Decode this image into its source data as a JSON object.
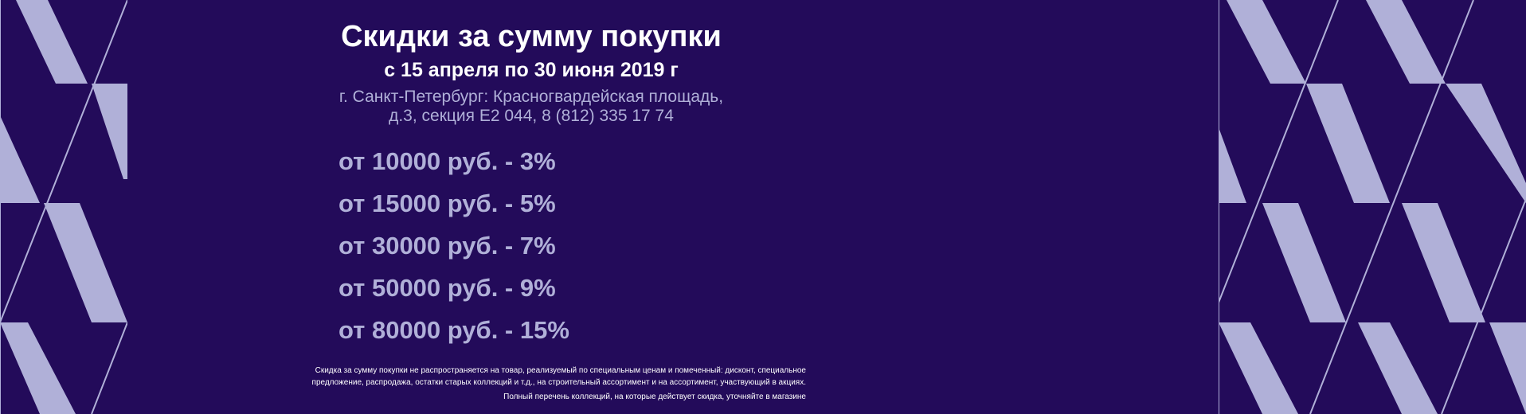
{
  "banner": {
    "title": "Скидки за сумму покупки",
    "dates": "с 15 апреля по 30 июня 2019 г",
    "address_line1": "г. Санкт-Петербург: Красногвардейская площадь,",
    "address_line2": "д.3, секция Е2 044, 8 (812) 335 17 74",
    "tiers": [
      {
        "label": "от 10000 руб. - 3%"
      },
      {
        "label": "от 15000 руб. - 5%"
      },
      {
        "label": "от 30000 руб. - 7%"
      },
      {
        "label": "от 50000 руб. - 9%"
      },
      {
        "label": "от 80000 руб. - 15%"
      }
    ],
    "disclaimer_line1": "Скидка за сумму покупки не распространяется на товар, реализуемый по специальным ценам и помеченный: дисконт, специальное",
    "disclaimer_line2": "предложение, распродажа, остатки старых коллекций и т.д., на строительный ассортимент и на ассортимент, участвующий в акциях.",
    "disclaimer_line3": "Полный перечень коллекций, на которые действует скидка, уточняйте в магазине"
  },
  "colors": {
    "background": "#230b5a",
    "pattern_stripe": "#b0b0d8",
    "title_text": "#ffffff",
    "tier_text": "#b0b0d8"
  },
  "icons": {
    "left_pattern": "geometric-stripes-pattern",
    "right_pattern": "geometric-stripes-pattern"
  }
}
